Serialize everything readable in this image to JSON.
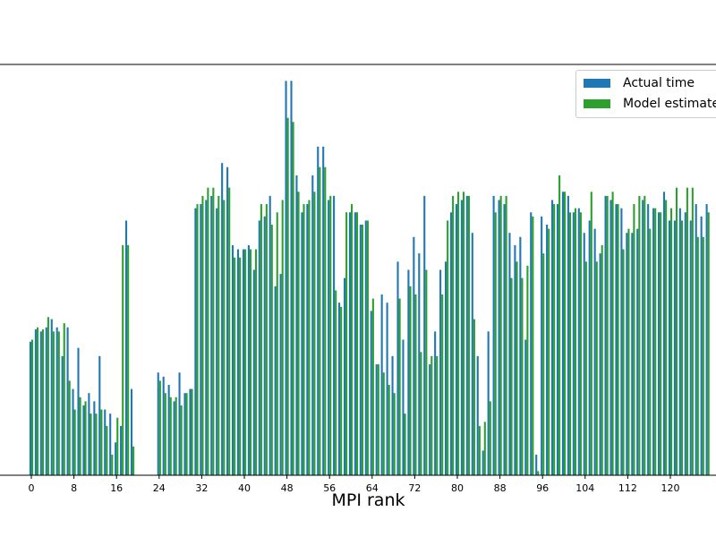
{
  "chart_data": {
    "type": "bar",
    "xlabel": "MPI rank",
    "ylabel": "",
    "ylim": [
      0,
      1.0
    ],
    "xtick_labels": [
      "0",
      "8",
      "16",
      "24",
      "32",
      "40",
      "48",
      "56",
      "64",
      "72",
      "80",
      "88",
      "96",
      "104",
      "112",
      "120"
    ],
    "colors": {
      "actual": "#1f77b4",
      "model": "#2ca02c"
    },
    "series": [
      {
        "name": "Actual time",
        "color": "#1f77b4",
        "values": [
          0.325,
          0.355,
          0.35,
          0.36,
          0.38,
          0.36,
          0.29,
          0.36,
          0.21,
          0.31,
          0.17,
          0.2,
          0.18,
          0.29,
          0.16,
          0.15,
          0.08,
          0.12,
          0.62,
          0.21,
          null,
          null,
          null,
          null,
          0.25,
          0.24,
          0.22,
          0.18,
          0.25,
          0.2,
          0.21,
          0.65,
          0.66,
          0.67,
          0.68,
          0.65,
          0.76,
          0.75,
          0.56,
          0.55,
          0.55,
          0.56,
          0.5,
          0.62,
          0.63,
          0.68,
          0.46,
          0.49,
          0.96,
          0.96,
          0.73,
          0.64,
          0.66,
          0.73,
          0.8,
          0.8,
          0.67,
          0.68,
          0.42,
          0.48,
          0.64,
          0.64,
          0.61,
          0.62,
          0.4,
          0.27,
          0.44,
          0.42,
          0.29,
          0.52,
          0.33,
          0.5,
          0.58,
          0.54,
          0.68,
          0.27,
          0.35,
          0.5,
          0.52,
          0.64,
          0.66,
          0.67,
          0.68,
          0.59,
          0.29,
          0.06,
          0.35,
          0.68,
          0.67,
          0.66,
          0.59,
          0.56,
          0.58,
          0.33,
          0.64,
          0.05,
          0.63,
          0.61,
          0.67,
          0.66,
          0.69,
          0.68,
          0.64,
          0.65,
          0.59,
          0.62,
          0.6,
          0.54,
          0.68,
          0.67,
          0.66,
          0.65,
          0.59,
          0.59,
          0.6,
          0.67,
          0.66,
          0.65,
          0.64,
          0.69,
          0.62,
          0.62,
          0.65,
          0.64,
          0.62,
          0.66,
          0.63,
          0.66
        ]
      },
      {
        "name": "Model estimate",
        "color": "#2ca02c",
        "values": [
          0.33,
          0.36,
          0.355,
          0.385,
          0.35,
          0.35,
          0.37,
          0.23,
          0.16,
          0.19,
          0.18,
          0.15,
          0.15,
          0.16,
          0.12,
          0.05,
          0.14,
          0.56,
          0.56,
          0.07,
          null,
          null,
          null,
          null,
          0.23,
          0.2,
          0.19,
          0.19,
          0.17,
          0.2,
          0.21,
          0.66,
          0.68,
          0.7,
          0.7,
          0.68,
          0.67,
          0.7,
          0.53,
          0.53,
          0.55,
          0.55,
          0.55,
          0.66,
          0.66,
          0.61,
          0.64,
          0.67,
          0.87,
          0.86,
          0.69,
          0.66,
          0.67,
          0.69,
          0.75,
          0.75,
          0.68,
          0.45,
          0.41,
          0.64,
          0.66,
          0.64,
          0.61,
          0.62,
          0.43,
          0.27,
          0.25,
          0.22,
          0.2,
          0.43,
          0.15,
          0.46,
          0.44,
          0.3,
          0.5,
          0.29,
          0.29,
          0.44,
          0.62,
          0.68,
          0.69,
          0.69,
          0.68,
          0.38,
          0.12,
          0.13,
          0.18,
          0.64,
          0.68,
          0.68,
          0.48,
          0.52,
          0.48,
          0.51,
          0.63,
          0.01,
          0.54,
          0.6,
          0.66,
          0.73,
          0.69,
          0.64,
          0.65,
          0.64,
          0.52,
          0.69,
          0.52,
          0.56,
          0.68,
          0.69,
          0.66,
          0.55,
          0.6,
          0.66,
          0.68,
          0.68,
          0.6,
          0.65,
          0.64,
          0.67,
          0.65,
          0.7,
          0.62,
          0.7,
          0.7,
          0.58,
          0.58,
          0.64
        ]
      }
    ]
  }
}
